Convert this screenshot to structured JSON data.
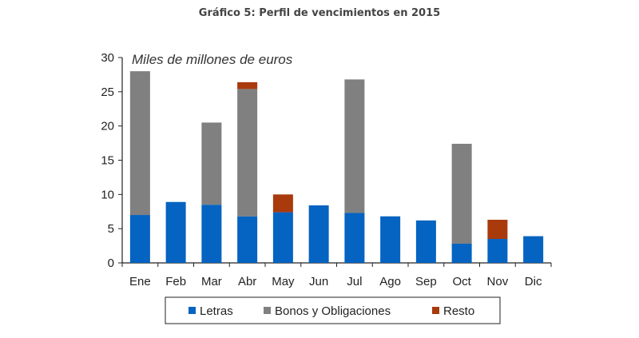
{
  "chart_data": {
    "type": "bar",
    "stacked": true,
    "title": "Gráfico 5: Perfil de vencimientos en 2015",
    "ylabel": "Miles de millones de euros",
    "xlabel": "",
    "ylim": [
      0,
      30
    ],
    "yticks": [
      0,
      5,
      10,
      15,
      20,
      25,
      30
    ],
    "grid": false,
    "legend_position": "bottom",
    "categories": [
      "Ene",
      "Feb",
      "Mar",
      "Abr",
      "May",
      "Jun",
      "Jul",
      "Ago",
      "Sep",
      "Oct",
      "Nov",
      "Dic"
    ],
    "series": [
      {
        "name": "Letras",
        "color": "#0563C1",
        "values": [
          7.0,
          8.9,
          8.5,
          6.8,
          7.4,
          8.4,
          7.3,
          6.8,
          6.2,
          2.8,
          3.5,
          3.9
        ]
      },
      {
        "name": "Bonos y Obligaciones",
        "color": "#808080",
        "values": [
          21.0,
          0,
          12.0,
          18.6,
          0,
          0,
          19.5,
          0,
          0,
          14.6,
          0,
          0
        ]
      },
      {
        "name": "Resto",
        "color": "#A93A0C",
        "values": [
          0,
          0,
          0,
          1.0,
          2.6,
          0,
          0,
          0,
          0,
          0,
          2.8,
          0
        ]
      }
    ]
  }
}
